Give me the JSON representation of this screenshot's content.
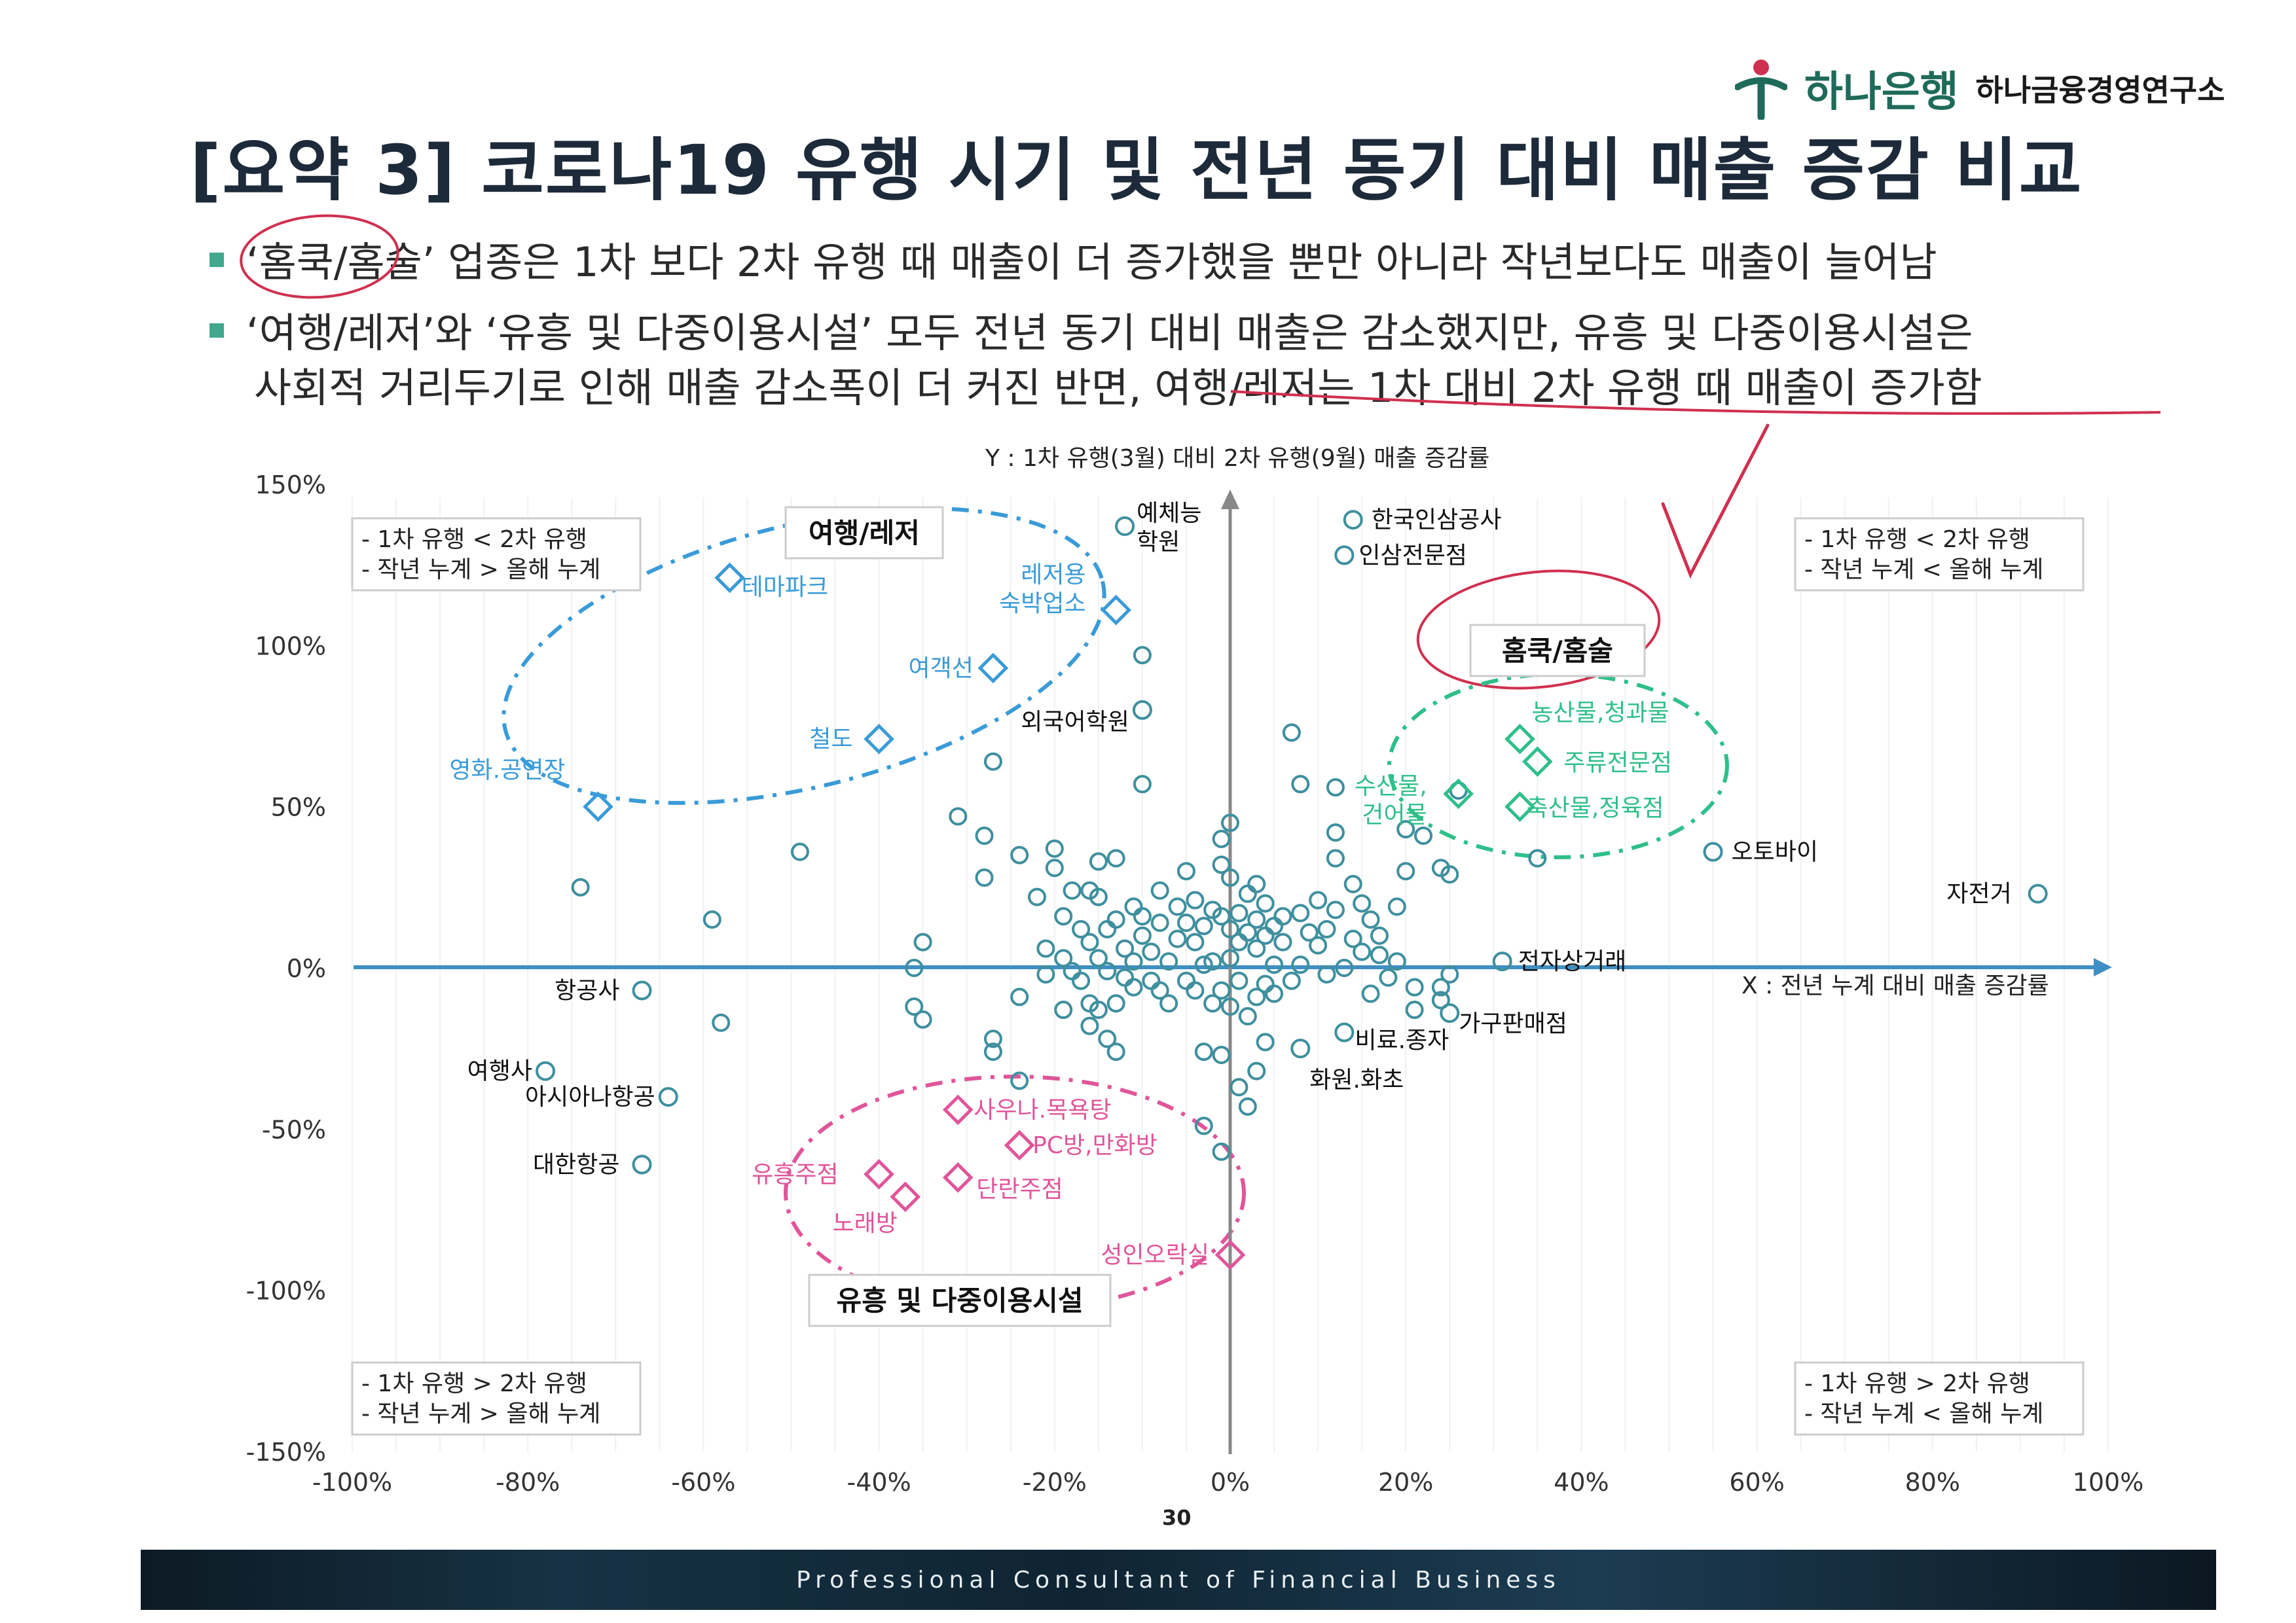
{
  "header": {
    "title": "[요약 3] 코로나19 유행 시기 및 전년 동기 대비 매출 증감 비교",
    "brand": "하나은행",
    "institute": "하나금융경영연구소"
  },
  "bullets": [
    "‘홈쿡/홈술’ 업종은 1차 보다 2차 유행 때 매출이 더 증가했을 뿐만 아니라 작년보다도 매출이 늘어남",
    "‘여행/레저’와 ‘유흥 및 다중이용시설’ 모두 전년 동기 대비 매출은 감소했지만, 유흥 및 다중이용시설은",
    "사회적 거리두기로 인해 매출 감소폭이 더 커진 반면, 여행/레저는 1차 대비 2차 유행 때 매출이 증가함"
  ],
  "quadrants": {
    "top_left": [
      "- 1차 유행 < 2차 유행",
      "- 작년 누계 > 올해 누계"
    ],
    "top_right": [
      "- 1차 유행 < 2차 유행",
      "- 작년 누계 < 올해 누계"
    ],
    "bottom_left": [
      "- 1차 유행 > 2차 유행",
      "- 작년 누계 > 올해 누계"
    ],
    "bottom_right": [
      "- 1차 유행 > 2차 유행",
      "- 작년 누계 < 올해 누계"
    ]
  },
  "groups": {
    "travel": "여행/레저",
    "homecook": "홈쿡/홈술",
    "entertainment": "유흥 및 다중이용시설"
  },
  "colors": {
    "travel": "#3a9bd8",
    "homecook": "#2fbf8a",
    "entertainment": "#e0559a",
    "other": "#3f8f9e",
    "axis": "#3f8fc4",
    "annotation": "#d0304f"
  },
  "chart_data": {
    "type": "scatter",
    "xlabel": "X : 전년 누계 대비 매출 증감률",
    "ylabel": "Y : 1차 유행(3월) 대비 2차 유행(9월) 매출 증감률",
    "xlim": [
      -100,
      100
    ],
    "ylim": [
      -150,
      150
    ],
    "x_ticks": [
      "-100%",
      "-80%",
      "-60%",
      "-40%",
      "-20%",
      "0%",
      "20%",
      "40%",
      "60%",
      "80%",
      "100%"
    ],
    "y_ticks": [
      "150%",
      "100%",
      "50%",
      "0%",
      "-50%",
      "-100%",
      "-150%"
    ],
    "labeled_points": [
      {
        "label": "테마파크",
        "x": -57,
        "y": 121,
        "group": "travel"
      },
      {
        "label": "레저용\n숙박업소",
        "x": -13,
        "y": 111,
        "group": "travel"
      },
      {
        "label": "여객선",
        "x": -27,
        "y": 93,
        "group": "travel"
      },
      {
        "label": "철도",
        "x": -40,
        "y": 71,
        "group": "travel"
      },
      {
        "label": "영화.공연장",
        "x": -72,
        "y": 50,
        "group": "travel"
      },
      {
        "label": "예체능\n학원",
        "x": -12,
        "y": 137,
        "group": "other"
      },
      {
        "label": "외국어학원",
        "x": -10,
        "y": 80,
        "group": "other"
      },
      {
        "label": "한국인삼공사",
        "x": 14,
        "y": 139,
        "group": "other"
      },
      {
        "label": "인삼전문점",
        "x": 13,
        "y": 128,
        "group": "other"
      },
      {
        "label": "수산물,\n건어물",
        "x": 26,
        "y": 54,
        "group": "homecook"
      },
      {
        "label": "농산물,청과물",
        "x": 33,
        "y": 71,
        "group": "homecook"
      },
      {
        "label": "주류전문점",
        "x": 35,
        "y": 64,
        "group": "homecook"
      },
      {
        "label": "축산물,정육점",
        "x": 33,
        "y": 50,
        "group": "homecook"
      },
      {
        "label": "오토바이",
        "x": 55,
        "y": 36,
        "group": "other"
      },
      {
        "label": "자전거",
        "x": 92,
        "y": 23,
        "group": "other"
      },
      {
        "label": "전자상거래",
        "x": 31,
        "y": 2,
        "group": "other"
      },
      {
        "label": "가구판매점",
        "x": 25,
        "y": -14,
        "group": "other"
      },
      {
        "label": "비료.종자",
        "x": 13,
        "y": -20,
        "group": "other"
      },
      {
        "label": "화원.화초",
        "x": 8,
        "y": -25,
        "group": "other"
      },
      {
        "label": "항공사",
        "x": -67,
        "y": -7,
        "group": "other"
      },
      {
        "label": "여행사",
        "x": -78,
        "y": -32,
        "group": "other"
      },
      {
        "label": "아시아나항공",
        "x": -64,
        "y": -40,
        "group": "other"
      },
      {
        "label": "대한항공",
        "x": -67,
        "y": -61,
        "group": "other"
      },
      {
        "label": "사우나.목욕탕",
        "x": -31,
        "y": -44,
        "group": "entertainment"
      },
      {
        "label": "유흥주점",
        "x": -40,
        "y": -64,
        "group": "entertainment"
      },
      {
        "label": "PC방,만화방",
        "x": -24,
        "y": -55,
        "group": "entertainment"
      },
      {
        "label": "단란주점",
        "x": -31,
        "y": -65,
        "group": "entertainment"
      },
      {
        "label": "노래방",
        "x": -37,
        "y": -71,
        "group": "entertainment"
      },
      {
        "label": "성인오락실",
        "x": 0,
        "y": -89,
        "group": "entertainment"
      }
    ],
    "points": [
      [
        -74,
        25
      ],
      [
        -59,
        15
      ],
      [
        -58,
        -17
      ],
      [
        -49,
        36
      ],
      [
        -35,
        8
      ],
      [
        -36,
        0
      ],
      [
        -36,
        -12
      ],
      [
        -35,
        -16
      ],
      [
        -31,
        47
      ],
      [
        -28,
        41
      ],
      [
        -28,
        28
      ],
      [
        -27,
        64
      ],
      [
        -27,
        -22
      ],
      [
        -27,
        -26
      ],
      [
        -24,
        -9
      ],
      [
        -24,
        35
      ],
      [
        -24,
        -35
      ],
      [
        -22,
        22
      ],
      [
        -21,
        6
      ],
      [
        -21,
        -2
      ],
      [
        -20,
        37
      ],
      [
        -20,
        31
      ],
      [
        -19,
        16
      ],
      [
        -19,
        3
      ],
      [
        -19,
        -13
      ],
      [
        -18,
        24
      ],
      [
        -18,
        -1
      ],
      [
        -17,
        12
      ],
      [
        -17,
        -4
      ],
      [
        -16,
        24
      ],
      [
        -16,
        8
      ],
      [
        -16,
        -11
      ],
      [
        -16,
        -18
      ],
      [
        -15,
        33
      ],
      [
        -15,
        22
      ],
      [
        -15,
        3
      ],
      [
        -15,
        -13
      ],
      [
        -14,
        12
      ],
      [
        -14,
        -1
      ],
      [
        -14,
        -22
      ],
      [
        -13,
        34
      ],
      [
        -13,
        15
      ],
      [
        -13,
        -11
      ],
      [
        -13,
        -26
      ],
      [
        -12,
        6
      ],
      [
        -12,
        -3
      ],
      [
        -11,
        19
      ],
      [
        -11,
        2
      ],
      [
        -11,
        -6
      ],
      [
        -10,
        97
      ],
      [
        -10,
        57
      ],
      [
        -10,
        16
      ],
      [
        -10,
        10
      ],
      [
        -9,
        5
      ],
      [
        -9,
        -4
      ],
      [
        -8,
        24
      ],
      [
        -8,
        14
      ],
      [
        -8,
        -7
      ],
      [
        -7,
        2
      ],
      [
        -7,
        -11
      ],
      [
        -6,
        19
      ],
      [
        -6,
        9
      ],
      [
        -5,
        30
      ],
      [
        -5,
        14
      ],
      [
        -5,
        -4
      ],
      [
        -4,
        21
      ],
      [
        -4,
        8
      ],
      [
        -4,
        -7
      ],
      [
        -3,
        13
      ],
      [
        -3,
        1
      ],
      [
        -3,
        -26
      ],
      [
        -3,
        -49
      ],
      [
        -2,
        18
      ],
      [
        -2,
        2
      ],
      [
        -2,
        -11
      ],
      [
        -1,
        40
      ],
      [
        -1,
        32
      ],
      [
        -1,
        16
      ],
      [
        -1,
        -7
      ],
      [
        -1,
        -27
      ],
      [
        -1,
        -57
      ],
      [
        0,
        45
      ],
      [
        0,
        28
      ],
      [
        0,
        12
      ],
      [
        0,
        3
      ],
      [
        0,
        -12
      ],
      [
        1,
        17
      ],
      [
        1,
        8
      ],
      [
        1,
        -4
      ],
      [
        1,
        -37
      ],
      [
        2,
        23
      ],
      [
        2,
        11
      ],
      [
        2,
        -15
      ],
      [
        2,
        -43
      ],
      [
        3,
        26
      ],
      [
        3,
        15
      ],
      [
        3,
        6
      ],
      [
        3,
        -9
      ],
      [
        3,
        -32
      ],
      [
        4,
        20
      ],
      [
        4,
        10
      ],
      [
        4,
        -5
      ],
      [
        4,
        -23
      ],
      [
        5,
        13
      ],
      [
        5,
        1
      ],
      [
        5,
        -8
      ],
      [
        6,
        16
      ],
      [
        6,
        8
      ],
      [
        7,
        73
      ],
      [
        7,
        -4
      ],
      [
        8,
        57
      ],
      [
        8,
        17
      ],
      [
        8,
        1
      ],
      [
        9,
        11
      ],
      [
        10,
        21
      ],
      [
        10,
        7
      ],
      [
        11,
        12
      ],
      [
        11,
        -2
      ],
      [
        12,
        42
      ],
      [
        12,
        34
      ],
      [
        12,
        56
      ],
      [
        12,
        18
      ],
      [
        13,
        0
      ],
      [
        14,
        26
      ],
      [
        14,
        9
      ],
      [
        15,
        20
      ],
      [
        15,
        5
      ],
      [
        16,
        -8
      ],
      [
        16,
        15
      ],
      [
        17,
        10
      ],
      [
        17,
        4
      ],
      [
        18,
        -3
      ],
      [
        19,
        2
      ],
      [
        19,
        19
      ],
      [
        20,
        43
      ],
      [
        20,
        30
      ],
      [
        21,
        -6
      ],
      [
        21,
        -13
      ],
      [
        22,
        41
      ],
      [
        24,
        31
      ],
      [
        24,
        -6
      ],
      [
        25,
        -2
      ],
      [
        25,
        29
      ],
      [
        35,
        34
      ],
      [
        24,
        -10
      ],
      [
        26,
        55
      ]
    ]
  },
  "page_number": "30",
  "footer": "Professional Consultant of Financial Business"
}
